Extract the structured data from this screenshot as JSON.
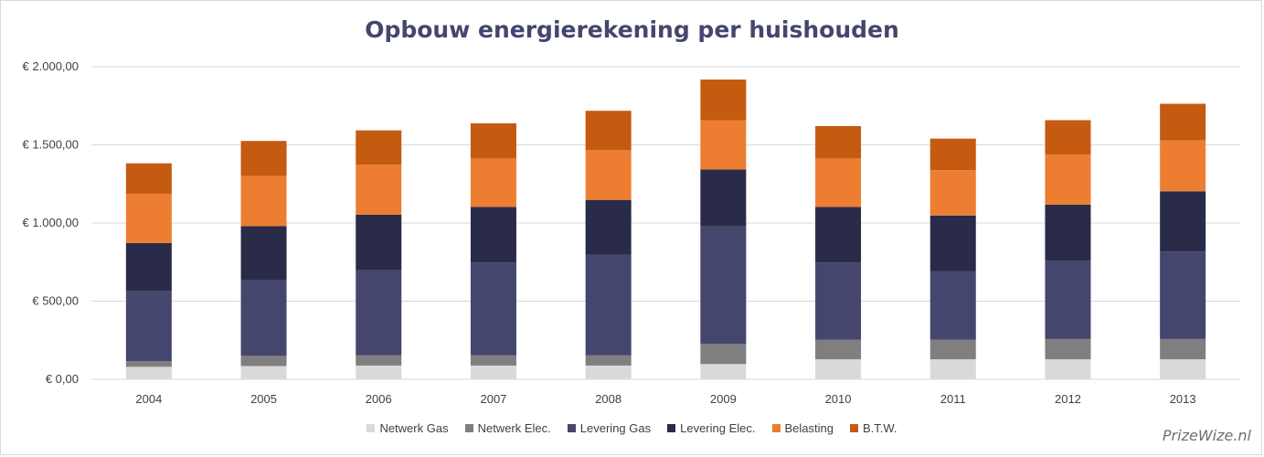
{
  "watermark": "PrizeWize.nl",
  "chart_data": {
    "type": "bar",
    "stacked": true,
    "title": "Opbouw energierekening per huishouden",
    "xlabel": "",
    "ylabel": "",
    "categories": [
      "2004",
      "2005",
      "2006",
      "2007",
      "2008",
      "2009",
      "2010",
      "2011",
      "2012",
      "2013"
    ],
    "ylim": [
      0,
      2000
    ],
    "yticks": [
      0,
      500,
      1000,
      1500,
      2000
    ],
    "ytick_labels": [
      "€ 0,00",
      "€ 500,00",
      "€ 1.000,00",
      "€ 1.500,00",
      "€ 2.000,00"
    ],
    "grid": true,
    "legend_position": "bottom",
    "series": [
      {
        "name": "Netwerk Gas",
        "color": "#d9d9d9",
        "values": [
          80,
          85,
          88,
          88,
          88,
          98,
          128,
          128,
          128,
          128
        ]
      },
      {
        "name": "Netwerk Elec.",
        "color": "#7f7f7f",
        "values": [
          37,
          65,
          65,
          65,
          65,
          130,
          125,
          125,
          130,
          130
        ]
      },
      {
        "name": "Levering Gas",
        "color": "#44466e",
        "values": [
          450,
          485,
          545,
          595,
          645,
          750,
          495,
          440,
          500,
          560
        ]
      },
      {
        "name": "Levering Elec.",
        "color": "#2a2b48",
        "values": [
          305,
          345,
          355,
          355,
          350,
          365,
          355,
          355,
          360,
          385
        ]
      },
      {
        "name": "Belasting",
        "color": "#ed7d31",
        "values": [
          315,
          320,
          320,
          310,
          320,
          315,
          310,
          290,
          320,
          325
        ]
      },
      {
        "name": "B.T.W.",
        "color": "#c55a11",
        "values": [
          195,
          225,
          220,
          225,
          250,
          260,
          207,
          202,
          220,
          235
        ]
      }
    ]
  }
}
